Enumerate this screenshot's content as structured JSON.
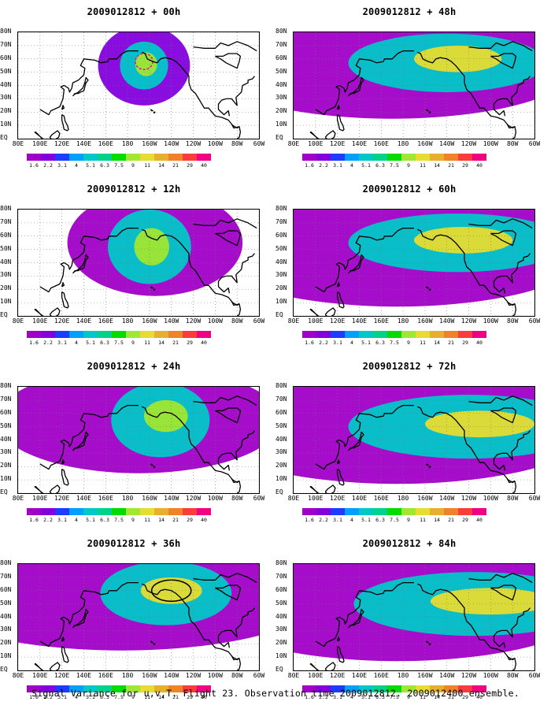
{
  "colorbar": {
    "levels": [
      "1.6",
      "2.2",
      "3.1",
      "4",
      "5.1",
      "6.3",
      "7.5",
      "9",
      "11",
      "14",
      "21",
      "29",
      "40"
    ],
    "colors": [
      "#a000c8",
      "#8200dc",
      "#1e3cff",
      "#00a0ff",
      "#00c8c8",
      "#00d28c",
      "#00dc00",
      "#a0e632",
      "#e6dc32",
      "#e6af2d",
      "#f08228",
      "#fa3c3c",
      "#f00082"
    ]
  },
  "axes": {
    "lat_labels": [
      "80N",
      "70N",
      "60N",
      "50N",
      "40N",
      "30N",
      "20N",
      "10N",
      "EQ"
    ],
    "lon_labels": [
      "80E",
      "100E",
      "120E",
      "140E",
      "160E",
      "180",
      "160W",
      "140W",
      "120W",
      "100W",
      "80W",
      "60W"
    ]
  },
  "caption": "Signal Variance for u,v,T. Flight 23. Observation time 2009012812. 2009012400 ensemble.",
  "chart_data": [
    {
      "type": "heatmap",
      "title": "2009012812 + 00h",
      "lead_hours": 0,
      "variance_max_level": 11,
      "features": [
        {
          "lon": -165,
          "lat": 55,
          "w": 42,
          "h": 30,
          "level": 2.2
        },
        {
          "lon": -165,
          "lat": 55,
          "w": 22,
          "h": 18,
          "level": 5.1
        },
        {
          "lon": -163,
          "lat": 56,
          "w": 10,
          "h": 9,
          "level": 9
        }
      ],
      "contour": {
        "lon": -165,
        "lat": 58,
        "w": 8,
        "h": 6,
        "color": "#e0148c"
      }
    },
    {
      "type": "heatmap",
      "title": "2009012812 + 48h",
      "lead_hours": 48,
      "variance_max_level": 14,
      "features": [
        {
          "lon": 170,
          "lat": 55,
          "w": 170,
          "h": 40,
          "level": 1.6
        },
        {
          "lon": -140,
          "lat": 57,
          "w": 90,
          "h": 22,
          "level": 5.1
        },
        {
          "lon": -130,
          "lat": 60,
          "w": 40,
          "h": 10,
          "level": 11
        }
      ]
    },
    {
      "type": "heatmap",
      "title": "2009012812 + 12h",
      "lead_hours": 12,
      "variance_max_level": 11,
      "features": [
        {
          "lon": -155,
          "lat": 55,
          "w": 80,
          "h": 40,
          "level": 1.6
        },
        {
          "lon": -160,
          "lat": 52,
          "w": 38,
          "h": 28,
          "level": 5.1
        },
        {
          "lon": -158,
          "lat": 52,
          "w": 16,
          "h": 14,
          "level": 9
        }
      ]
    },
    {
      "type": "heatmap",
      "title": "2009012812 + 60h",
      "lead_hours": 60,
      "variance_max_level": 14,
      "features": [
        {
          "lon": 175,
          "lat": 52,
          "w": 180,
          "h": 45,
          "level": 1.6
        },
        {
          "lon": -130,
          "lat": 55,
          "w": 100,
          "h": 22,
          "level": 5.1
        },
        {
          "lon": -125,
          "lat": 57,
          "w": 45,
          "h": 10,
          "level": 11
        }
      ]
    },
    {
      "type": "heatmap",
      "title": "2009012812 + 24h",
      "lead_hours": 24,
      "variance_max_level": 11,
      "features": [
        {
          "lon": -170,
          "lat": 55,
          "w": 130,
          "h": 40,
          "level": 1.6
        },
        {
          "lon": -150,
          "lat": 55,
          "w": 45,
          "h": 28,
          "level": 5.1
        },
        {
          "lon": -145,
          "lat": 58,
          "w": 20,
          "h": 12,
          "level": 9
        }
      ]
    },
    {
      "type": "heatmap",
      "title": "2009012812 + 72h",
      "lead_hours": 72,
      "variance_max_level": 14,
      "features": [
        {
          "lon": 175,
          "lat": 52,
          "w": 185,
          "h": 45,
          "level": 1.6
        },
        {
          "lon": -120,
          "lat": 50,
          "w": 110,
          "h": 24,
          "level": 5.1
        },
        {
          "lon": -110,
          "lat": 52,
          "w": 50,
          "h": 10,
          "level": 11
        }
      ]
    },
    {
      "type": "heatmap",
      "title": "2009012812 + 36h",
      "lead_hours": 36,
      "variance_max_level": 14,
      "features": [
        {
          "lon": 175,
          "lat": 55,
          "w": 180,
          "h": 40,
          "level": 1.6
        },
        {
          "lon": -145,
          "lat": 58,
          "w": 60,
          "h": 24,
          "level": 5.1
        },
        {
          "lon": -140,
          "lat": 60,
          "w": 28,
          "h": 10,
          "level": 11
        }
      ],
      "contour": {
        "lon": -140,
        "lat": 60,
        "w": 18,
        "h": 8,
        "color": "#000000"
      }
    },
    {
      "type": "heatmap",
      "title": "2009012812 + 84h",
      "lead_hours": 84,
      "variance_max_level": 14,
      "features": [
        {
          "lon": 175,
          "lat": 52,
          "w": 185,
          "h": 45,
          "level": 1.6
        },
        {
          "lon": -115,
          "lat": 50,
          "w": 110,
          "h": 24,
          "level": 5.1
        },
        {
          "lon": -100,
          "lat": 52,
          "w": 55,
          "h": 10,
          "level": 11
        }
      ]
    }
  ]
}
